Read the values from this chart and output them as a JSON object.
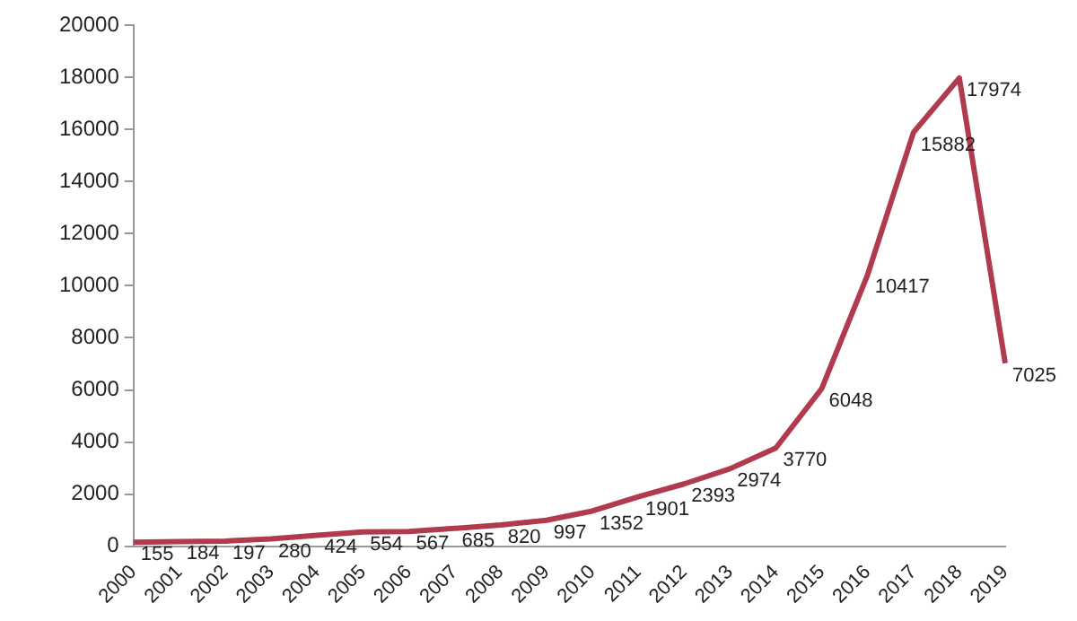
{
  "chart_data": {
    "type": "line",
    "categories": [
      "2000",
      "2001",
      "2002",
      "2003",
      "2004",
      "2005",
      "2006",
      "2007",
      "2008",
      "2009",
      "2010",
      "2011",
      "2012",
      "2013",
      "2014",
      "2015",
      "2016",
      "2017",
      "2018",
      "2019"
    ],
    "series": [
      {
        "color": "#b03a4e",
        "values": [
          155,
          184,
          197,
          280,
          424,
          554,
          567,
          685,
          820,
          997,
          1352,
          1901,
          2393,
          2974,
          3770,
          6048,
          10417,
          15882,
          17974,
          7025
        ]
      }
    ],
    "ylim": [
      0,
      20000
    ],
    "yticks": [
      0,
      2000,
      4000,
      6000,
      8000,
      10000,
      12000,
      14000,
      16000,
      18000,
      20000
    ],
    "grid": false,
    "legend": false,
    "marker": "none",
    "line_style": "solid",
    "data_labels": true
  }
}
